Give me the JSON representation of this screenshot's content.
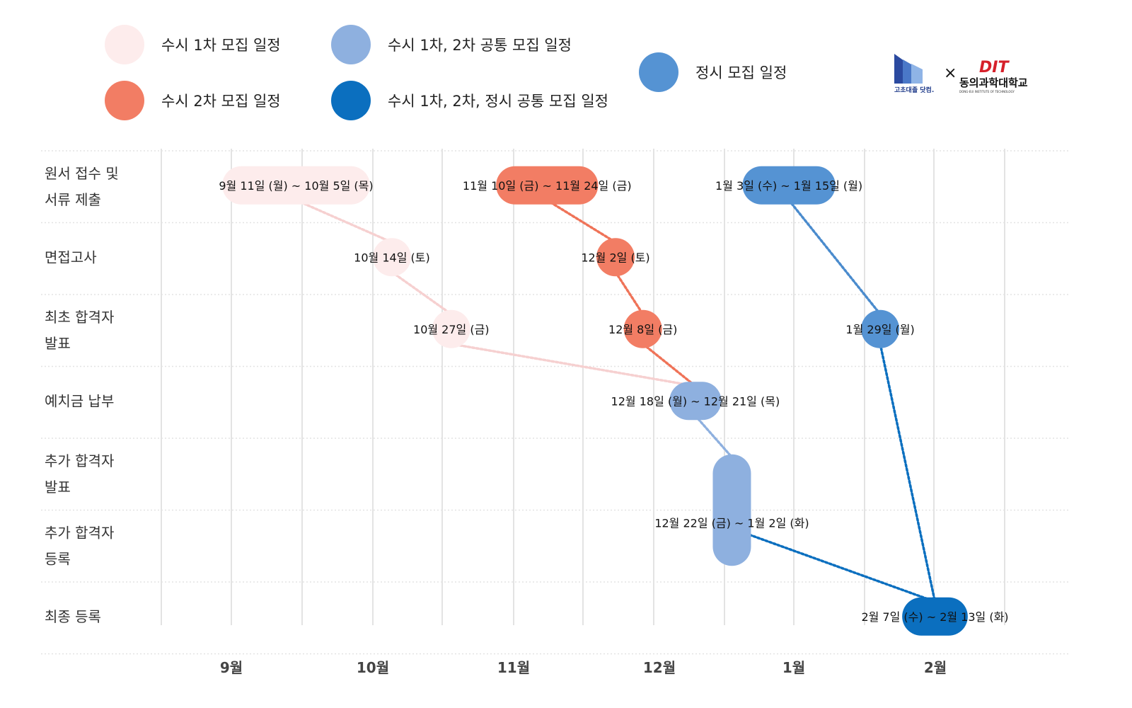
{
  "legend": {
    "items": [
      {
        "label": "수시 1차 모집 일정",
        "color": "#fdecec"
      },
      {
        "label": "수시 2차 모집 일정",
        "color": "#f27d64"
      },
      {
        "label": "수시 1차, 2차 공통 모집 일정",
        "color": "#8eb0df"
      },
      {
        "label": "수시 1차, 2차, 정시 공통 모집 일정",
        "color": "#0b6fbf"
      },
      {
        "label": "정시 모집 일정",
        "color": "#5593d3"
      }
    ]
  },
  "logos": {
    "left_name": "고초대졸 닷컴.",
    "cross": "×",
    "right_mark": "DIT",
    "right_name": "동의과학대학교",
    "right_sub": "DONG-EUI INSTITUTE OF TECHNOLOGY"
  },
  "chart_data": {
    "type": "timeline",
    "x_axis": {
      "months": [
        "9월",
        "10월",
        "11월",
        "12월",
        "1월",
        "2월"
      ],
      "range_days": [
        "2023-08-24",
        "2024-02-29"
      ]
    },
    "rows": [
      "원서 접수 및\n서류 제출",
      "면접고사",
      "최초 합격자\n발표",
      "예치금 납부",
      "추가 합격자\n발표",
      "추가 합격자\n등록",
      "최종 등록"
    ],
    "events": [
      {
        "id": "r1-app",
        "row": 0,
        "start": 18,
        "end": 42,
        "label": "9월 11일 (월) ~ 10월 5일 (목)",
        "group": "susi1"
      },
      {
        "id": "r1-int",
        "row": 1,
        "start": 51,
        "end": 51,
        "label": "10월 14일 (토)",
        "group": "susi1"
      },
      {
        "id": "r1-ann",
        "row": 2,
        "start": 64,
        "end": 64,
        "label": "10월 27일 (금)",
        "group": "susi1"
      },
      {
        "id": "r2-app",
        "row": 0,
        "start": 78,
        "end": 92,
        "label": "11월 10일 (금) ~ 11월 24일 (금)",
        "group": "susi2"
      },
      {
        "id": "r2-int",
        "row": 1,
        "start": 100,
        "end": 100,
        "label": "12월 2일 (토)",
        "group": "susi2"
      },
      {
        "id": "r2-ann",
        "row": 2,
        "start": 106,
        "end": 106,
        "label": "12월 8일 (금)",
        "group": "susi2"
      },
      {
        "id": "c-dep",
        "row": 3,
        "start": 116,
        "end": 119,
        "label": "12월 18일 (월) ~ 12월 21일 (목)",
        "group": "common12"
      },
      {
        "id": "c-add",
        "row": 4,
        "row_end": 5,
        "start": 120,
        "end": 131,
        "label": "12월 22일 (금) ~ 1월 2일 (화)",
        "group": "common12"
      },
      {
        "id": "j-app",
        "row": 0,
        "start": 132,
        "end": 144,
        "label": "1월 3일 (수) ~ 1월 15일 (월)",
        "group": "jeongsi"
      },
      {
        "id": "j-ann",
        "row": 2,
        "start": 158,
        "end": 158,
        "label": "1월 29일 (월)",
        "group": "jeongsi"
      },
      {
        "id": "final",
        "row": 6,
        "start": 167,
        "end": 173,
        "label": "2월 7일 (수) ~ 2월 13일 (화)",
        "group": "all"
      }
    ],
    "connectors": [
      {
        "from": "r1-app",
        "to": "r1-int",
        "group": "susi1"
      },
      {
        "from": "r1-int",
        "to": "r1-ann",
        "group": "susi1"
      },
      {
        "from": "r1-ann",
        "to": "c-dep",
        "group": "susi1"
      },
      {
        "from": "r2-app",
        "to": "r2-int",
        "group": "susi2"
      },
      {
        "from": "r2-int",
        "to": "r2-ann",
        "group": "susi2"
      },
      {
        "from": "r2-ann",
        "to": "c-dep",
        "group": "susi2"
      },
      {
        "from": "c-dep",
        "to": "c-add",
        "group": "common12"
      },
      {
        "from": "c-add",
        "to": "final",
        "group": "all"
      },
      {
        "from": "j-app",
        "to": "j-ann",
        "group": "jeongsi"
      },
      {
        "from": "j-ann",
        "to": "final",
        "group": "all"
      }
    ],
    "colors": {
      "susi1": "#fdecec",
      "susi1_line": "#f6d0d0",
      "susi2": "#f27d64",
      "susi2_line": "#ef7358",
      "common12": "#8eb0df",
      "common12_line": "#8eb0df",
      "jeongsi": "#5593d3",
      "jeongsi_line": "#4a8bcd",
      "all": "#0b6fbf",
      "all_line": "#0b6fbf",
      "grid": "#e3e3e3"
    }
  }
}
